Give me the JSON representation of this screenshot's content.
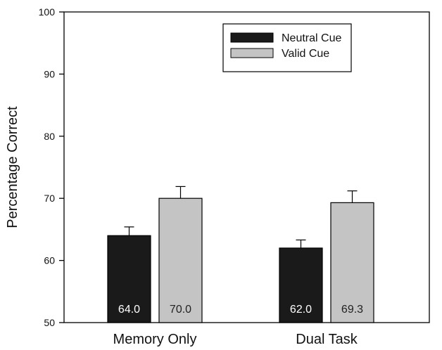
{
  "chart_data": {
    "type": "bar",
    "categories": [
      "Memory Only",
      "Dual Task"
    ],
    "series": [
      {
        "name": "Neutral Cue",
        "values": [
          64.0,
          62.0
        ],
        "errors": [
          1.4,
          1.3
        ],
        "labels": [
          "64.0",
          "62.0"
        ],
        "color": "#1a1a1a"
      },
      {
        "name": "Valid Cue",
        "values": [
          70.0,
          69.3
        ],
        "errors": [
          1.9,
          1.9
        ],
        "labels": [
          "70.0",
          "69.3"
        ],
        "color": "#c4c4c4"
      }
    ],
    "ylabel": "Percentage Correct",
    "xlabel": "",
    "ylim": [
      50,
      100
    ],
    "yticks": [
      50,
      60,
      70,
      80,
      90,
      100
    ],
    "legend_position": "top-center",
    "grid": false
  }
}
